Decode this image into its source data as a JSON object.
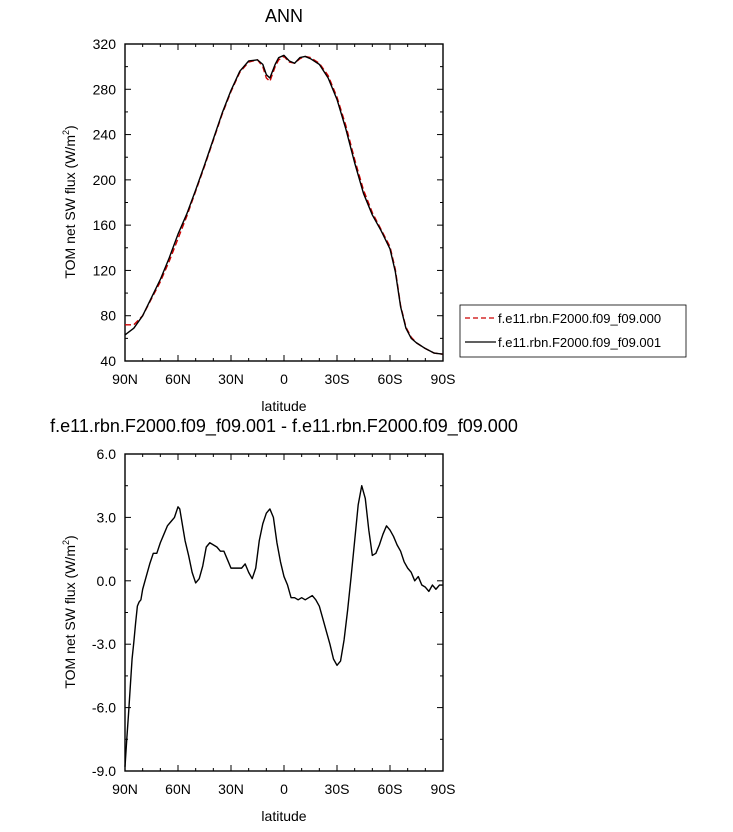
{
  "chart_data": [
    {
      "type": "line",
      "title": "ANN",
      "xlabel": "latitude",
      "ylabel_main": "TOM net SW flux (W/m",
      "ylabel_sup": "2",
      "ylabel_close": ")",
      "xlim": [
        90,
        -90
      ],
      "ylim": [
        40,
        320
      ],
      "x_ticks": [
        90,
        60,
        30,
        0,
        -30,
        -60,
        -90
      ],
      "x_tick_labels": [
        "90N",
        "60N",
        "30N",
        "0",
        "30S",
        "60S",
        "90S"
      ],
      "y_ticks": [
        40,
        80,
        120,
        160,
        200,
        240,
        280,
        320
      ],
      "y_tick_labels": [
        "40",
        "80",
        "120",
        "160",
        "200",
        "240",
        "280",
        "320"
      ],
      "legend_position": "right",
      "series": [
        {
          "name": "f.e11.rbn.F2000.f09_f09.000",
          "color": "#cc0000",
          "dashed": true,
          "x": [
            90,
            85,
            80,
            75,
            70,
            65,
            60,
            55,
            50,
            45,
            40,
            35,
            30,
            25,
            20,
            15,
            12,
            10,
            8,
            5,
            3,
            0,
            -3,
            -6,
            -9,
            -12,
            -15,
            -20,
            -25,
            -30,
            -35,
            -40,
            -45,
            -50,
            -55,
            -60,
            -63,
            -66,
            -69,
            -72,
            -75,
            -80,
            -85,
            -90
          ],
          "y": [
            72,
            72,
            80,
            95,
            110,
            128,
            148,
            168,
            190,
            212,
            235,
            258,
            278,
            295,
            304,
            306,
            300,
            290,
            287,
            300,
            306,
            309,
            304,
            303,
            307,
            309,
            308,
            303,
            292,
            273,
            248,
            218,
            191,
            171,
            156,
            141,
            121,
            89,
            70,
            61,
            56,
            51,
            47,
            46
          ]
        },
        {
          "name": "f.e11.rbn.F2000.f09_f09.001",
          "color": "#000000",
          "dashed": false,
          "x": [
            90,
            85,
            80,
            75,
            70,
            65,
            60,
            55,
            50,
            45,
            40,
            35,
            30,
            25,
            20,
            15,
            12,
            10,
            8,
            5,
            3,
            0,
            -3,
            -6,
            -9,
            -12,
            -15,
            -20,
            -25,
            -30,
            -35,
            -40,
            -45,
            -50,
            -55,
            -60,
            -63,
            -66,
            -69,
            -72,
            -75,
            -80,
            -85,
            -90
          ],
          "y": [
            63,
            69,
            80,
            96,
            112,
            131,
            152,
            170,
            191,
            213,
            236,
            259,
            279,
            296,
            305,
            306,
            302,
            293,
            290,
            302,
            308,
            310,
            305,
            303,
            308,
            309,
            307,
            302,
            290,
            271,
            245,
            215,
            188,
            169,
            155,
            139,
            119,
            88,
            69,
            60,
            56,
            51,
            47,
            46
          ]
        }
      ]
    },
    {
      "type": "line",
      "title": "f.e11.rbn.F2000.f09_f09.001 - f.e11.rbn.F2000.f09_f09.000",
      "xlabel": "latitude",
      "ylabel_main": "TOM net SW flux (W/m",
      "ylabel_sup": "2",
      "ylabel_close": ")",
      "xlim": [
        90,
        -90
      ],
      "ylim": [
        -9,
        6
      ],
      "x_ticks": [
        90,
        60,
        30,
        0,
        -30,
        -60,
        -90
      ],
      "x_tick_labels": [
        "90N",
        "60N",
        "30N",
        "0",
        "30S",
        "60S",
        "90S"
      ],
      "y_ticks": [
        -9,
        -6,
        -3,
        0,
        3,
        6
      ],
      "y_tick_labels": [
        "-9.0",
        "-6.0",
        "-3.0",
        "0.0",
        "3.0",
        "6.0"
      ],
      "series": [
        {
          "color": "#000000",
          "dashed": false,
          "x": [
            90,
            89,
            88,
            87,
            86,
            85,
            84,
            83,
            82,
            81,
            80,
            78,
            76,
            74,
            72,
            70,
            68,
            66,
            64,
            62,
            60,
            59,
            58,
            57,
            56,
            54,
            52,
            50,
            48,
            46,
            44,
            42,
            40,
            38,
            36,
            34,
            32,
            30,
            28,
            26,
            24,
            22,
            20,
            18,
            16,
            14,
            12,
            10,
            8,
            6,
            4,
            2,
            0,
            -2,
            -4,
            -6,
            -8,
            -10,
            -12,
            -14,
            -16,
            -18,
            -20,
            -22,
            -24,
            -26,
            -28,
            -30,
            -32,
            -34,
            -36,
            -38,
            -40,
            -42,
            -44,
            -46,
            -48,
            -50,
            -52,
            -54,
            -56,
            -58,
            -60,
            -62,
            -64,
            -66,
            -68,
            -70,
            -72,
            -74,
            -76,
            -78,
            -80,
            -82,
            -84,
            -86,
            -88,
            -90
          ],
          "y": [
            -8.8,
            -7.5,
            -6.3,
            -5.0,
            -3.7,
            -2.9,
            -2.0,
            -1.2,
            -1.0,
            -0.9,
            -0.4,
            0.2,
            0.8,
            1.3,
            1.3,
            1.8,
            2.2,
            2.6,
            2.8,
            3.0,
            3.5,
            3.4,
            2.9,
            2.4,
            1.9,
            1.2,
            0.4,
            -0.1,
            0.1,
            0.7,
            1.6,
            1.8,
            1.7,
            1.6,
            1.4,
            1.4,
            1.0,
            0.6,
            0.6,
            0.6,
            0.6,
            0.8,
            0.4,
            0.1,
            0.6,
            1.9,
            2.7,
            3.2,
            3.4,
            3.0,
            1.8,
            0.9,
            0.2,
            -0.2,
            -0.8,
            -0.8,
            -0.9,
            -0.8,
            -0.9,
            -0.8,
            -0.7,
            -0.9,
            -1.2,
            -1.8,
            -2.4,
            -3.0,
            -3.7,
            -4.0,
            -3.8,
            -2.8,
            -1.4,
            0.2,
            1.9,
            3.6,
            4.5,
            3.9,
            2.4,
            1.2,
            1.3,
            1.7,
            2.2,
            2.6,
            2.4,
            2.1,
            1.7,
            1.4,
            0.9,
            0.6,
            0.4,
            0.0,
            0.2,
            -0.2,
            -0.3,
            -0.5,
            -0.2,
            -0.4,
            -0.2,
            -0.2
          ]
        }
      ]
    }
  ]
}
